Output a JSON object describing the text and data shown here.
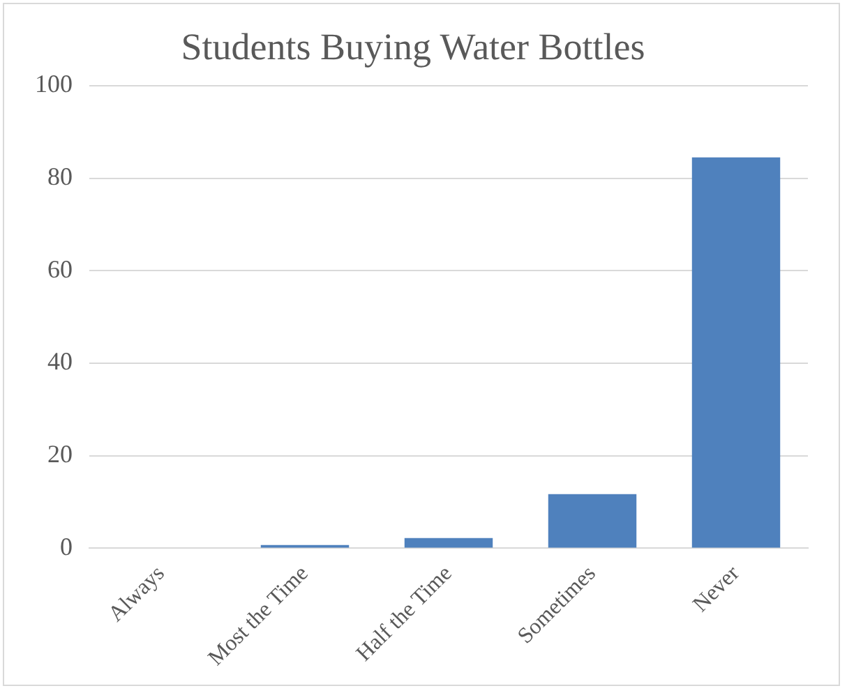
{
  "chart_data": {
    "type": "bar",
    "title": "Students Buying Water Bottles",
    "categories": [
      "Always",
      "Most the Time",
      "Half the Time",
      "Sometimes",
      "Never"
    ],
    "values": [
      0,
      0.7,
      2.2,
      11.7,
      84.5
    ],
    "color": "#4f81bd",
    "ylim": [
      0,
      100
    ],
    "yticks": [
      0,
      20,
      40,
      60,
      80,
      100
    ],
    "grid": "y"
  }
}
